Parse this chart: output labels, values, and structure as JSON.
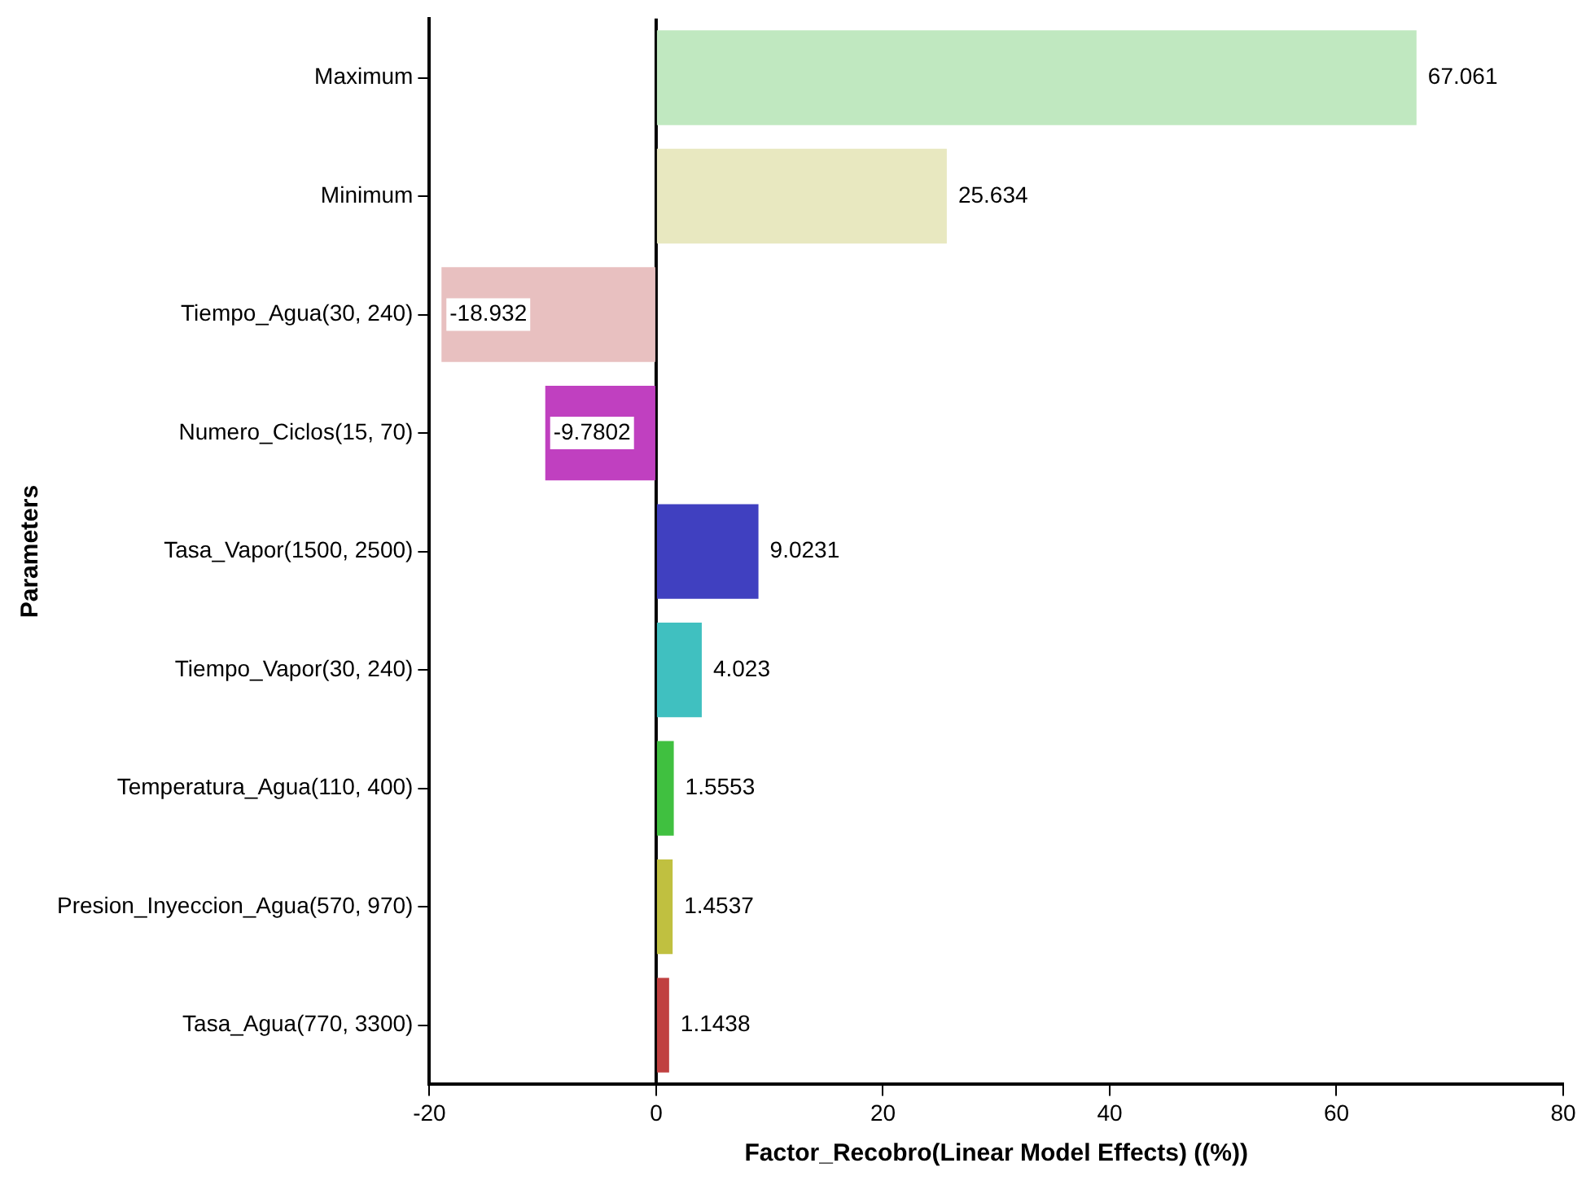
{
  "chart_data": {
    "type": "bar",
    "orientation": "horizontal",
    "xlabel": "Factor_Recobro(Linear Model Effects) ((%))",
    "ylabel": "Parameters",
    "categories": [
      "Maximum",
      "Minimum",
      "Tiempo_Agua(30, 240)",
      "Numero_Ciclos(15, 70)",
      "Tasa_Vapor(1500, 2500)",
      "Tiempo_Vapor(30, 240)",
      "Temperatura_Agua(110, 400)",
      "Presion_Inyeccion_Agua(570, 970)",
      "Tasa_Agua(770, 3300)"
    ],
    "values": [
      67.061,
      25.634,
      -18.932,
      -9.7802,
      9.0231,
      4.023,
      1.5553,
      1.4537,
      1.1438
    ],
    "colors": [
      "#c0e8c0",
      "#e8e8c0",
      "#e8c0c0",
      "#c040c0",
      "#4040c0",
      "#40c0c0",
      "#40c040",
      "#c0c040",
      "#c04040"
    ],
    "xlim": [
      -20,
      80
    ],
    "xticks": [
      -20,
      0,
      20,
      40,
      60,
      80
    ],
    "ref_lines": [
      {
        "axis": "x",
        "value": 0,
        "color": "#000000"
      }
    ],
    "data_labels": true,
    "grid": false,
    "legend": false
  }
}
